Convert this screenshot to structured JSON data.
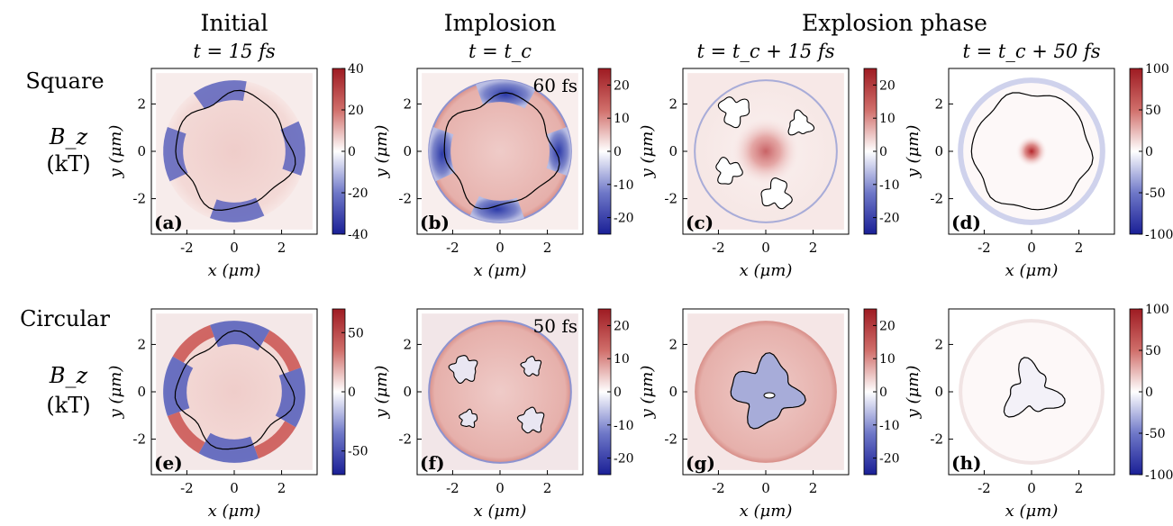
{
  "column_headers": {
    "initial_title": "Initial",
    "implosion_title": "Implosion",
    "explosion_title": "Explosion phase",
    "times": [
      "t = 15 fs",
      "t = t_c",
      "t = t_c + 15 fs",
      "t = t_c + 50 fs"
    ]
  },
  "row_labels": [
    {
      "name": "Square",
      "quantity": "B_z",
      "unit": "(kT)"
    },
    {
      "name": "Circular",
      "quantity": "B_z",
      "unit": "(kT)"
    }
  ],
  "colors": {
    "negative": "#2a2fa8",
    "zero": "#ffffff",
    "positive": "#b3252a"
  },
  "chart_data": [
    {
      "type": "heatmap",
      "panel": "(a)",
      "row": "Square",
      "time": "t = 15 fs",
      "xlabel": "x (μm)",
      "ylabel": "y (μm)",
      "xlim": [
        -3.5,
        3.5
      ],
      "ylim": [
        -3.5,
        3.5
      ],
      "xticks": [
        -2,
        0,
        2
      ],
      "yticks": [
        -2,
        0,
        2
      ],
      "colorbar": {
        "range": [
          -40,
          40
        ],
        "ticks": [
          40,
          20,
          0,
          -20,
          -40
        ]
      },
      "inset": "",
      "pattern": "square-initial"
    },
    {
      "type": "heatmap",
      "panel": "(b)",
      "row": "Square",
      "time": "t = t_c",
      "xlabel": "x (μm)",
      "ylabel": "y (μm)",
      "xlim": [
        -3.5,
        3.5
      ],
      "ylim": [
        -3.5,
        3.5
      ],
      "xticks": [
        -2,
        0,
        2
      ],
      "yticks": [
        -2,
        0,
        2
      ],
      "colorbar": {
        "range": [
          -25,
          25
        ],
        "ticks": [
          20,
          10,
          0,
          -10,
          -20
        ]
      },
      "inset": "60 fs",
      "pattern": "square-implosion"
    },
    {
      "type": "heatmap",
      "panel": "(c)",
      "row": "Square",
      "time": "t = t_c + 15 fs",
      "xlabel": "x (μm)",
      "ylabel": "y (μm)",
      "xlim": [
        -3.5,
        3.5
      ],
      "ylim": [
        -3.5,
        3.5
      ],
      "xticks": [
        -2,
        0,
        2
      ],
      "yticks": [
        -2,
        0,
        2
      ],
      "colorbar": {
        "range": [
          -25,
          25
        ],
        "ticks": [
          20,
          10,
          0,
          -10,
          -20
        ]
      },
      "inset": "",
      "pattern": "square-explosion-15"
    },
    {
      "type": "heatmap",
      "panel": "(d)",
      "row": "Square",
      "time": "t = t_c + 50 fs",
      "xlabel": "x (μm)",
      "ylabel": "y (μm)",
      "xlim": [
        -3.5,
        3.5
      ],
      "ylim": [
        -3.5,
        3.5
      ],
      "xticks": [
        -2,
        0,
        2
      ],
      "yticks": [
        -2,
        0,
        2
      ],
      "colorbar": {
        "range": [
          -100,
          100
        ],
        "ticks": [
          100,
          50,
          0,
          -50,
          -100
        ]
      },
      "inset": "",
      "pattern": "square-explosion-50"
    },
    {
      "type": "heatmap",
      "panel": "(e)",
      "row": "Circular",
      "time": "t = 15 fs",
      "xlabel": "x (μm)",
      "ylabel": "y (μm)",
      "xlim": [
        -3.5,
        3.5
      ],
      "ylim": [
        -3.5,
        3.5
      ],
      "xticks": [
        -2,
        0,
        2
      ],
      "yticks": [
        -2,
        0,
        2
      ],
      "colorbar": {
        "range": [
          -70,
          70
        ],
        "ticks": [
          50,
          0,
          -50
        ]
      },
      "inset": "",
      "pattern": "circular-initial"
    },
    {
      "type": "heatmap",
      "panel": "(f)",
      "row": "Circular",
      "time": "t = t_c",
      "xlabel": "x (μm)",
      "ylabel": "y (μm)",
      "xlim": [
        -3.5,
        3.5
      ],
      "ylim": [
        -3.5,
        3.5
      ],
      "xticks": [
        -2,
        0,
        2
      ],
      "yticks": [
        -2,
        0,
        2
      ],
      "colorbar": {
        "range": [
          -25,
          25
        ],
        "ticks": [
          20,
          10,
          0,
          -10,
          -20
        ]
      },
      "inset": "50 fs",
      "pattern": "circular-implosion"
    },
    {
      "type": "heatmap",
      "panel": "(g)",
      "row": "Circular",
      "time": "t = t_c + 15 fs",
      "xlabel": "x (μm)",
      "ylabel": "y (μm)",
      "xlim": [
        -3.5,
        3.5
      ],
      "ylim": [
        -3.5,
        3.5
      ],
      "xticks": [
        -2,
        0,
        2
      ],
      "yticks": [
        -2,
        0,
        2
      ],
      "colorbar": {
        "range": [
          -25,
          25
        ],
        "ticks": [
          20,
          10,
          0,
          -10,
          -20
        ]
      },
      "inset": "",
      "pattern": "circular-explosion-15"
    },
    {
      "type": "heatmap",
      "panel": "(h)",
      "row": "Circular",
      "time": "t = t_c + 50 fs",
      "xlabel": "x (μm)",
      "ylabel": "y (μm)",
      "xlim": [
        -3.5,
        3.5
      ],
      "ylim": [
        -3.5,
        3.5
      ],
      "xticks": [
        -2,
        0,
        2
      ],
      "yticks": [
        -2,
        0,
        2
      ],
      "colorbar": {
        "range": [
          -100,
          100
        ],
        "ticks": [
          100,
          50,
          0,
          -50,
          -100
        ]
      },
      "inset": "",
      "pattern": "circular-explosion-50"
    }
  ]
}
